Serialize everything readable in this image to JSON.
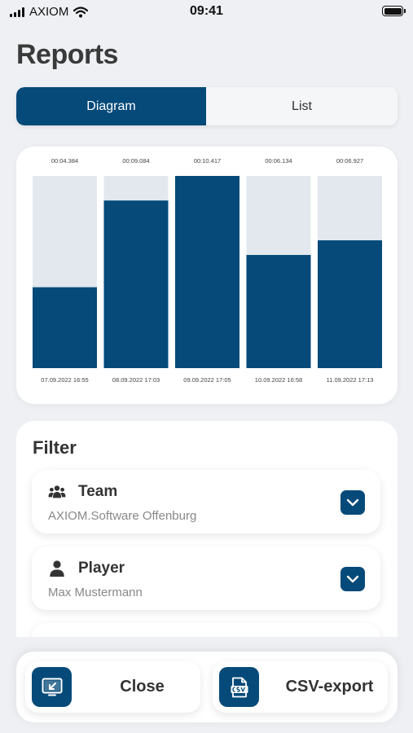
{
  "status_bar": {
    "carrier": "AXIOM",
    "time": "09:41"
  },
  "page_title": "Reports",
  "tabs": [
    {
      "label": "Diagram",
      "active": true
    },
    {
      "label": "List",
      "active": false
    }
  ],
  "chart_data": {
    "type": "bar",
    "categories": [
      "07.09.2022  16:55",
      "08.09.2022  17:03",
      "09.09.2022  17:05",
      "10.09.2022  16:58",
      "11.09.2022  17:13"
    ],
    "bar_labels": [
      "00:04.384",
      "00:09.084",
      "00:10.417",
      "00:06.134",
      "00:06.927"
    ],
    "values": [
      4.384,
      9.084,
      10.417,
      6.134,
      6.927
    ],
    "ylim": [
      0,
      10.417
    ],
    "colors": {
      "fill": "#054a79",
      "track": "#e2e8ee"
    }
  },
  "filter": {
    "title": "Filter",
    "items": [
      {
        "icon": "team-icon",
        "label": "Team",
        "value": "AXIOM.Software Offenburg"
      },
      {
        "icon": "player-icon",
        "label": "Player",
        "value": "Max Mustermann"
      }
    ]
  },
  "actions": {
    "close_label": "Close",
    "csv_label": "CSV-export"
  },
  "colors": {
    "accent": "#054a79",
    "background": "#eef0f3"
  }
}
